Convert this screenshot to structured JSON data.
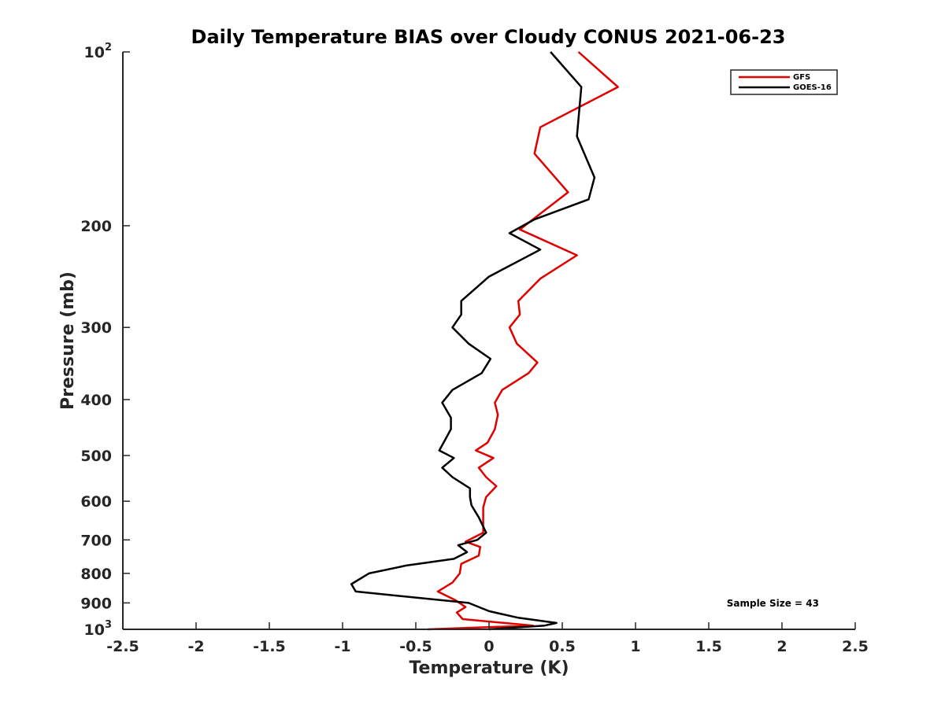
{
  "chart_data": {
    "type": "line",
    "title": "Daily Temperature BIAS over Cloudy CONUS 2021-06-23",
    "xlabel": "Temperature (K)",
    "ylabel": "Pressure (mb)",
    "xlim": [
      -2.5,
      2.5
    ],
    "ylim": [
      100,
      1000
    ],
    "y_scale": "log",
    "y_reversed": true,
    "grid": false,
    "legend_position": "top-right",
    "x_ticks": [
      -2.5,
      -2,
      -1.5,
      -1,
      -0.5,
      0,
      0.5,
      1,
      1.5,
      2,
      2.5
    ],
    "x_tick_labels": [
      "-2.5",
      "-2",
      "-1.5",
      "-1",
      "-0.5",
      "0",
      "0.5",
      "1",
      "1.5",
      "2",
      "2.5"
    ],
    "y_ticks": [
      100,
      200,
      300,
      400,
      500,
      600,
      700,
      800,
      900,
      1000
    ],
    "y_tick_labels": [
      {
        "base": "10",
        "sup": "2"
      },
      {
        "base": "200",
        "sup": ""
      },
      {
        "base": "300",
        "sup": ""
      },
      {
        "base": "400",
        "sup": ""
      },
      {
        "base": "500",
        "sup": ""
      },
      {
        "base": "600",
        "sup": ""
      },
      {
        "base": "700",
        "sup": ""
      },
      {
        "base": "800",
        "sup": ""
      },
      {
        "base": "900",
        "sup": ""
      },
      {
        "base": "10",
        "sup": "3"
      }
    ],
    "annotation": "Sample Size = 43",
    "series": [
      {
        "name": "GFS",
        "color": "#e00000",
        "points": [
          [
            0.61,
            100
          ],
          [
            0.88,
            115
          ],
          [
            0.35,
            135
          ],
          [
            0.31,
            150
          ],
          [
            0.54,
            175
          ],
          [
            0.21,
            203
          ],
          [
            0.6,
            225
          ],
          [
            0.35,
            247
          ],
          [
            0.2,
            270
          ],
          [
            0.21,
            285
          ],
          [
            0.14,
            300
          ],
          [
            0.19,
            320
          ],
          [
            0.33,
            345
          ],
          [
            0.27,
            360
          ],
          [
            0.09,
            385
          ],
          [
            0.04,
            405
          ],
          [
            0.06,
            425
          ],
          [
            0.04,
            450
          ],
          [
            -0.01,
            475
          ],
          [
            -0.09,
            490
          ],
          [
            0.03,
            505
          ],
          [
            -0.07,
            525
          ],
          [
            -0.02,
            545
          ],
          [
            0.05,
            565
          ],
          [
            -0.02,
            590
          ],
          [
            -0.04,
            615
          ],
          [
            -0.04,
            645
          ],
          [
            -0.04,
            680
          ],
          [
            -0.16,
            705
          ],
          [
            -0.06,
            720
          ],
          [
            -0.07,
            745
          ],
          [
            -0.19,
            770
          ],
          [
            -0.2,
            800
          ],
          [
            -0.25,
            830
          ],
          [
            -0.35,
            860
          ],
          [
            -0.23,
            890
          ],
          [
            -0.16,
            915
          ],
          [
            -0.22,
            935
          ],
          [
            -0.18,
            960
          ],
          [
            0.3,
            985
          ],
          [
            -0.42,
            1000
          ]
        ]
      },
      {
        "name": "GOES-16",
        "color": "#000000",
        "points": [
          [
            0.42,
            100
          ],
          [
            0.63,
            115
          ],
          [
            0.6,
            140
          ],
          [
            0.72,
            165
          ],
          [
            0.68,
            180
          ],
          [
            0.31,
            195
          ],
          [
            0.14,
            206
          ],
          [
            0.35,
            220
          ],
          [
            0.0,
            245
          ],
          [
            -0.19,
            270
          ],
          [
            -0.19,
            285
          ],
          [
            -0.25,
            300
          ],
          [
            -0.14,
            320
          ],
          [
            0.01,
            340
          ],
          [
            -0.05,
            360
          ],
          [
            -0.25,
            385
          ],
          [
            -0.32,
            405
          ],
          [
            -0.26,
            430
          ],
          [
            -0.26,
            450
          ],
          [
            -0.31,
            475
          ],
          [
            -0.34,
            490
          ],
          [
            -0.24,
            505
          ],
          [
            -0.32,
            525
          ],
          [
            -0.25,
            545
          ],
          [
            -0.13,
            570
          ],
          [
            -0.13,
            590
          ],
          [
            -0.12,
            610
          ],
          [
            -0.07,
            640
          ],
          [
            -0.02,
            680
          ],
          [
            -0.08,
            700
          ],
          [
            -0.21,
            715
          ],
          [
            -0.15,
            735
          ],
          [
            -0.24,
            755
          ],
          [
            -0.56,
            775
          ],
          [
            -0.82,
            800
          ],
          [
            -0.94,
            835
          ],
          [
            -0.91,
            860
          ],
          [
            -0.14,
            900
          ],
          [
            0.0,
            930
          ],
          [
            0.2,
            955
          ],
          [
            0.46,
            975
          ],
          [
            0.38,
            985
          ],
          [
            0.0,
            1000
          ]
        ]
      }
    ]
  }
}
